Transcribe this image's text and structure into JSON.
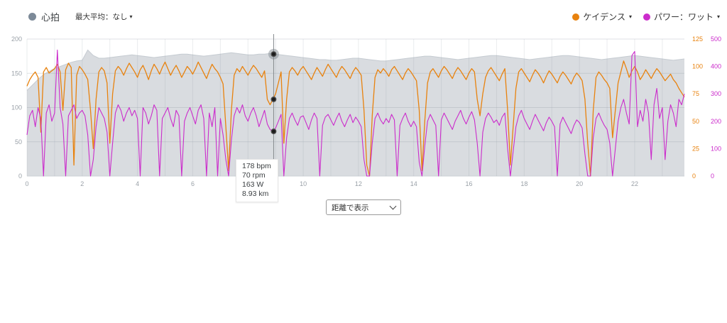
{
  "legend": {
    "caret": "▾",
    "heart_rate": {
      "label": "心拍",
      "dot_color": "#7c8a98"
    },
    "max_avg": {
      "label": "最大平均：なし"
    },
    "cadence": {
      "label": "ケイデンス",
      "dot_color": "#e8820e"
    },
    "power": {
      "label": "パワー：ワット",
      "dot_color": "#cb2ccb"
    }
  },
  "tooltip": {
    "lines": [
      "178 bpm",
      "70 rpm",
      "163 W",
      "8.93 km"
    ]
  },
  "controls": {
    "display_mode": "距離で表示"
  },
  "chart_data": {
    "type": "line",
    "title": "",
    "x_unit": "km",
    "x_max": 23.8,
    "x_grid_step": 1,
    "x_label_step": 2,
    "legend_position": "top",
    "grid": true,
    "axes": {
      "heart_rate": {
        "side": "left",
        "min": 0,
        "max": 200,
        "ticks": [
          0,
          50,
          100,
          150,
          200
        ],
        "color": "#9aa1a8"
      },
      "cadence": {
        "side": "right",
        "min": 0,
        "max": 125,
        "ticks": [
          0,
          25,
          50,
          75,
          100,
          125
        ],
        "color": "#e8820e"
      },
      "power": {
        "side": "right",
        "min": 0,
        "max": 500,
        "ticks": [
          0,
          100,
          200,
          300,
          400,
          500
        ],
        "color": "#cb2ccb"
      }
    },
    "series": [
      {
        "name": "heart_rate",
        "display": "心拍",
        "type": "area",
        "axis": "heart_rate",
        "color": "#d9dce0",
        "stroke": "#c5cbd1",
        "start": 0,
        "step": 0.2,
        "values": [
          125,
          133,
          141,
          148,
          153,
          157,
          160,
          163,
          166,
          168,
          169,
          184,
          176,
          172,
          172,
          173,
          174,
          175,
          176,
          177,
          176,
          175,
          174,
          173,
          174,
          175,
          176,
          177,
          178,
          178,
          177,
          176,
          175,
          176,
          177,
          178,
          179,
          180,
          179,
          178,
          177,
          177,
          178,
          178,
          179,
          178,
          177,
          176,
          175,
          174,
          173,
          172,
          171,
          170,
          170,
          169,
          169,
          170,
          171,
          172,
          172,
          171,
          170,
          169,
          168,
          168,
          169,
          170,
          171,
          172,
          173,
          174,
          175,
          175,
          174,
          173,
          172,
          171,
          170,
          171,
          172,
          173,
          174,
          175,
          176,
          176,
          175,
          174,
          173,
          172,
          171,
          170,
          171,
          172,
          173,
          174,
          175,
          176,
          176,
          175,
          174,
          173,
          172,
          171,
          170,
          171,
          172,
          173,
          174,
          175,
          176,
          175,
          174,
          173,
          172,
          171,
          170,
          169,
          170,
          171
        ]
      },
      {
        "name": "cadence",
        "display": "ケイデンス",
        "type": "line",
        "axis": "cadence",
        "color": "#e8820e",
        "start": 0,
        "step": 0.1,
        "values": [
          82,
          88,
          92,
          95,
          90,
          40,
          95,
          99,
          94,
          96,
          98,
          102,
          95,
          60,
          97,
          103,
          99,
          10,
          92,
          100,
          97,
          93,
          88,
          60,
          25,
          70,
          95,
          99,
          96,
          85,
          30,
          75,
          96,
          100,
          97,
          92,
          98,
          103,
          99,
          95,
          90,
          97,
          101,
          95,
          88,
          96,
          102,
          98,
          93,
          99,
          104,
          98,
          92,
          97,
          101,
          96,
          90,
          95,
          100,
          97,
          93,
          98,
          104,
          99,
          94,
          89,
          96,
          102,
          98,
          95,
          90,
          84,
          45,
          5,
          60,
          92,
          98,
          95,
          100,
          96,
          92,
          97,
          101,
          98,
          94,
          90,
          96,
          70,
          65,
          70,
          75,
          85,
          95,
          30,
          70,
          95,
          99,
          96,
          92,
          97,
          100,
          96,
          92,
          88,
          94,
          99,
          95,
          91,
          97,
          102,
          98,
          94,
          90,
          96,
          100,
          97,
          93,
          89,
          95,
          99,
          96,
          92,
          60,
          10,
          0,
          55,
          90,
          97,
          94,
          98,
          95,
          91,
          97,
          100,
          96,
          92,
          88,
          94,
          98,
          95,
          91,
          87,
          60,
          5,
          50,
          85,
          95,
          98,
          94,
          90,
          96,
          100,
          97,
          93,
          89,
          95,
          99,
          96,
          92,
          88,
          94,
          98,
          95,
          70,
          55,
          75,
          90,
          96,
          99,
          95,
          91,
          87,
          93,
          98,
          60,
          10,
          45,
          80,
          95,
          98,
          94,
          90,
          86,
          92,
          97,
          94,
          90,
          85,
          91,
          96,
          93,
          89,
          85,
          91,
          95,
          92,
          88,
          84,
          90,
          94,
          91,
          87,
          70,
          30,
          0,
          60,
          90,
          95,
          92,
          88,
          85,
          80,
          35,
          60,
          85,
          95,
          105,
          98,
          90,
          96,
          100,
          95,
          88,
          92,
          97,
          93,
          89,
          94,
          98,
          95,
          91,
          87,
          90,
          93,
          88,
          85,
          80,
          76,
          72
        ]
      },
      {
        "name": "power",
        "display": "パワー：ワット",
        "type": "line",
        "axis": "power",
        "color": "#cb2ccb",
        "start": 0,
        "step": 0.1,
        "values": [
          150,
          220,
          240,
          180,
          250,
          210,
          0,
          230,
          260,
          200,
          230,
          460,
          250,
          190,
          0,
          220,
          240,
          260,
          210,
          230,
          240,
          220,
          150,
          0,
          60,
          180,
          250,
          230,
          210,
          160,
          0,
          120,
          230,
          260,
          240,
          200,
          230,
          250,
          220,
          240,
          210,
          0,
          250,
          230,
          190,
          220,
          260,
          240,
          0,
          210,
          230,
          250,
          210,
          180,
          240,
          220,
          0,
          200,
          230,
          250,
          220,
          190,
          240,
          260,
          210,
          0,
          230,
          180,
          250,
          0,
          210,
          150,
          60,
          0,
          130,
          220,
          250,
          230,
          260,
          220,
          200,
          230,
          250,
          220,
          180,
          210,
          240,
          190,
          170,
          163,
          175,
          200,
          225,
          0,
          140,
          210,
          230,
          205,
          185,
          215,
          220,
          195,
          170,
          205,
          230,
          210,
          0,
          185,
          215,
          225,
          205,
          185,
          210,
          230,
          200,
          180,
          205,
          225,
          195,
          215,
          200,
          180,
          60,
          0,
          0,
          120,
          210,
          230,
          205,
          190,
          210,
          195,
          225,
          205,
          0,
          185,
          210,
          230,
          200,
          180,
          200,
          180,
          50,
          0,
          110,
          200,
          225,
          205,
          185,
          0,
          205,
          230,
          210,
          190,
          170,
          200,
          220,
          240,
          210,
          190,
          215,
          235,
          205,
          120,
          0,
          160,
          210,
          230,
          215,
          195,
          205,
          185,
          215,
          230,
          100,
          0,
          90,
          180,
          220,
          240,
          210,
          190,
          170,
          200,
          225,
          205,
          185,
          165,
          195,
          215,
          200,
          180,
          0,
          190,
          215,
          195,
          175,
          155,
          185,
          205,
          195,
          175,
          80,
          0,
          0,
          140,
          210,
          230,
          205,
          185,
          170,
          120,
          0,
          100,
          200,
          250,
          280,
          230,
          190,
          440,
          455,
          180,
          240,
          200,
          280,
          230,
          60,
          260,
          320,
          210,
          250,
          60,
          200,
          260,
          230,
          180,
          280,
          260,
          300
        ]
      }
    ],
    "cursor": {
      "x_km": 8.93,
      "points": [
        {
          "series": "heart_rate",
          "value": 178
        },
        {
          "series": "cadence",
          "value": 70
        },
        {
          "series": "power",
          "value": 163
        }
      ]
    }
  }
}
